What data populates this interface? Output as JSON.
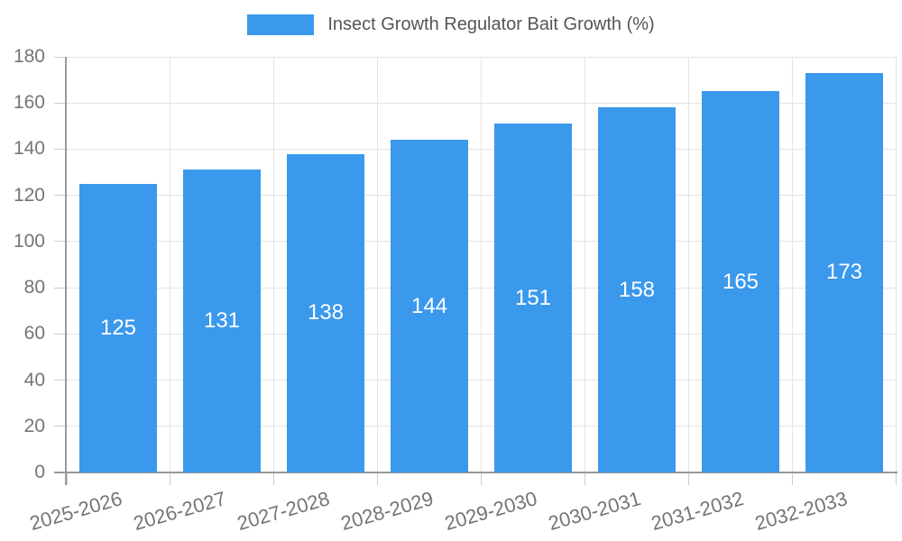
{
  "legend": {
    "label": "Insect Growth Regulator Bait Growth (%)"
  },
  "chart_data": {
    "type": "bar",
    "title": "Insect Growth Regulator Bait Growth (%)",
    "categories": [
      "2025-2026",
      "2026-2027",
      "2027-2028",
      "2028-2029",
      "2029-2030",
      "2030-2031",
      "2031-2032",
      "2032-2033"
    ],
    "series": [
      {
        "name": "Insect Growth Regulator Bait Growth (%)",
        "values": [
          125,
          131,
          138,
          144,
          151,
          158,
          165,
          173
        ]
      }
    ],
    "value_labels": [
      125,
      131,
      138,
      144,
      151,
      158,
      165,
      173
    ],
    "xlabel": "",
    "ylabel": "",
    "ylim": [
      0,
      180
    ],
    "ytick_interval": 20,
    "yticks": [
      0,
      20,
      40,
      60,
      80,
      100,
      120,
      140,
      160,
      180
    ],
    "grid": true,
    "legend_position": "top",
    "colors": {
      "bar": "#3B99EC",
      "value_label": "#FFFFFF",
      "axis_label": "#757575",
      "legend_text": "#555555",
      "gridline": "#E4E4E4",
      "tick": "#CCCCCC",
      "axis_line": "#999999"
    }
  }
}
